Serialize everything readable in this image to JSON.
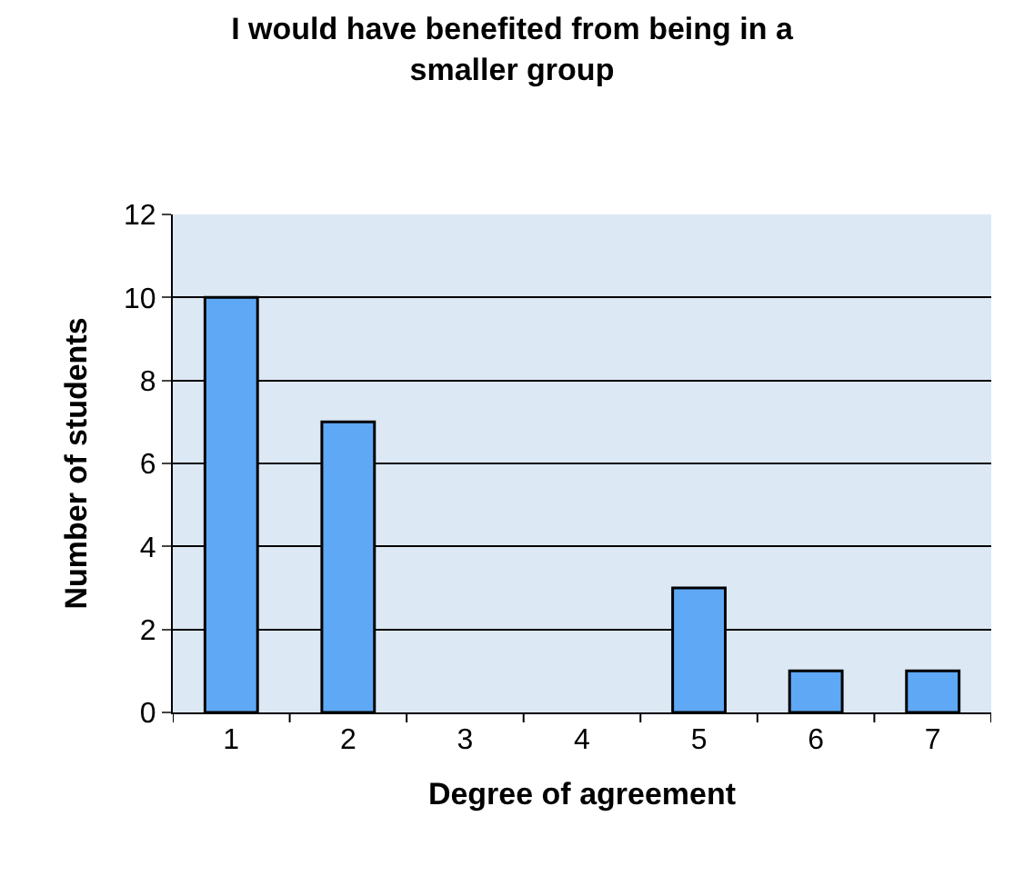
{
  "chart_data": {
    "type": "bar",
    "title": "I would have benefited from being in a smaller group",
    "xlabel": "Degree of agreement",
    "ylabel": "Number of students",
    "categories": [
      "1",
      "2",
      "3",
      "4",
      "5",
      "6",
      "7"
    ],
    "values": [
      10,
      7,
      0,
      0,
      3,
      1,
      1
    ],
    "color": "#5fa8f5",
    "ylim": [
      0,
      12
    ],
    "yticks": [
      0,
      2,
      4,
      6,
      8,
      10,
      12
    ],
    "grid": "y",
    "legend": false
  }
}
